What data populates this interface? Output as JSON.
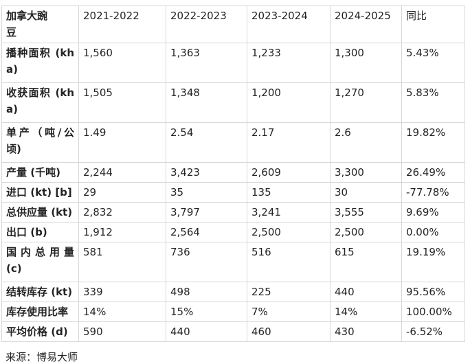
{
  "table": {
    "title_cell": "加拿大豌豆",
    "year_columns": [
      "2021-2022",
      "2022-2023",
      "2023-2024",
      "2024-2025"
    ],
    "yoy_column": "同比",
    "rows": [
      {
        "label": "播种面积 (kha)",
        "values": [
          "1,560",
          "1,363",
          "1,233",
          "1,300"
        ],
        "yoy": "5.43%"
      },
      {
        "label": "收获面积 (kha)",
        "values": [
          "1,505",
          "1,348",
          "1,200",
          "1,270"
        ],
        "yoy": "5.83%"
      },
      {
        "label": "单产（吨/公顷)",
        "values": [
          "1.49",
          "2.54",
          "2.17",
          "2.6"
        ],
        "yoy": "19.82%"
      },
      {
        "label": "产量 (千吨)",
        "values": [
          "2,244",
          "3,423",
          "2,609",
          "3,300"
        ],
        "yoy": "26.49%"
      },
      {
        "label": "进口 (kt) [b]",
        "values": [
          "29",
          "35",
          "135",
          "30"
        ],
        "yoy": "-77.78%"
      },
      {
        "label": "总供应量 (kt)",
        "values": [
          "2,832",
          "3,797",
          "3,241",
          "3,555"
        ],
        "yoy": "9.69%"
      },
      {
        "label": "出口 (b)",
        "values": [
          "1,912",
          "2,564",
          "2,500",
          "2,500"
        ],
        "yoy": "0.00%"
      },
      {
        "label": "国内总用量 (c)",
        "values": [
          "581",
          "736",
          "516",
          "615"
        ],
        "yoy": "19.19%"
      },
      {
        "label": "结转库存 (kt)",
        "values": [
          "339",
          "498",
          "225",
          "440"
        ],
        "yoy": "95.56%"
      },
      {
        "label": "库存使用比率",
        "values": [
          "14%",
          "15%",
          "7%",
          "14%"
        ],
        "yoy": "100.00%"
      },
      {
        "label": "平均价格 (d)",
        "values": [
          "590",
          "440",
          "460",
          "430"
        ],
        "yoy": "-6.52%"
      }
    ]
  },
  "source_note": "来源：博易大师",
  "colors": {
    "text": "#232323",
    "border": "#d7d7d7",
    "background": "#ffffff"
  }
}
